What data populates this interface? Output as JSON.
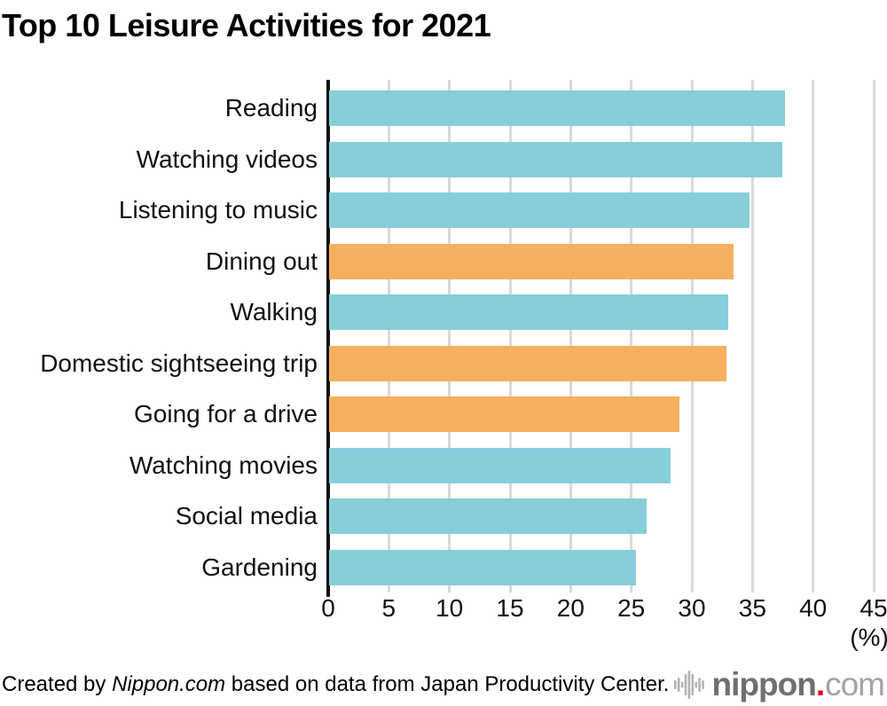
{
  "title": "Top 10 Leisure Activities for 2021",
  "chart_data": {
    "type": "bar",
    "orientation": "horizontal",
    "title": "Top 10 Leisure Activities for 2021",
    "categories": [
      "Reading",
      "Watching videos",
      "Listening to music",
      "Dining out",
      "Walking",
      "Domestic sightseeing trip",
      "Going for a drive",
      "Watching movies",
      "Social media",
      "Gardening"
    ],
    "values": [
      37.6,
      37.4,
      34.7,
      33.4,
      32.9,
      32.8,
      28.9,
      28.2,
      26.2,
      25.3
    ],
    "bar_color_keys": [
      "teal",
      "teal",
      "teal",
      "orange",
      "teal",
      "orange",
      "orange",
      "teal",
      "teal",
      "teal"
    ],
    "palette": {
      "teal": "#87CEDA",
      "orange": "#F4B05E"
    },
    "xlabel": "(%)",
    "xlim": [
      0,
      45
    ],
    "xticks": [
      0,
      5,
      10,
      15,
      20,
      25,
      30,
      35,
      40,
      45
    ],
    "grid": "vertical",
    "gridline_color": "#d9d9d9",
    "axis_color": "#111111",
    "legend": "none"
  },
  "footer": {
    "credit_prefix": "Created by ",
    "credit_source": "Nippon.com",
    "credit_suffix": " based on data from Japan Productivity Center.",
    "logo": {
      "icon": "soundwave-icon",
      "name": "nippon",
      "dot": ".",
      "tld": "com",
      "dot_color": "#e60012"
    }
  }
}
